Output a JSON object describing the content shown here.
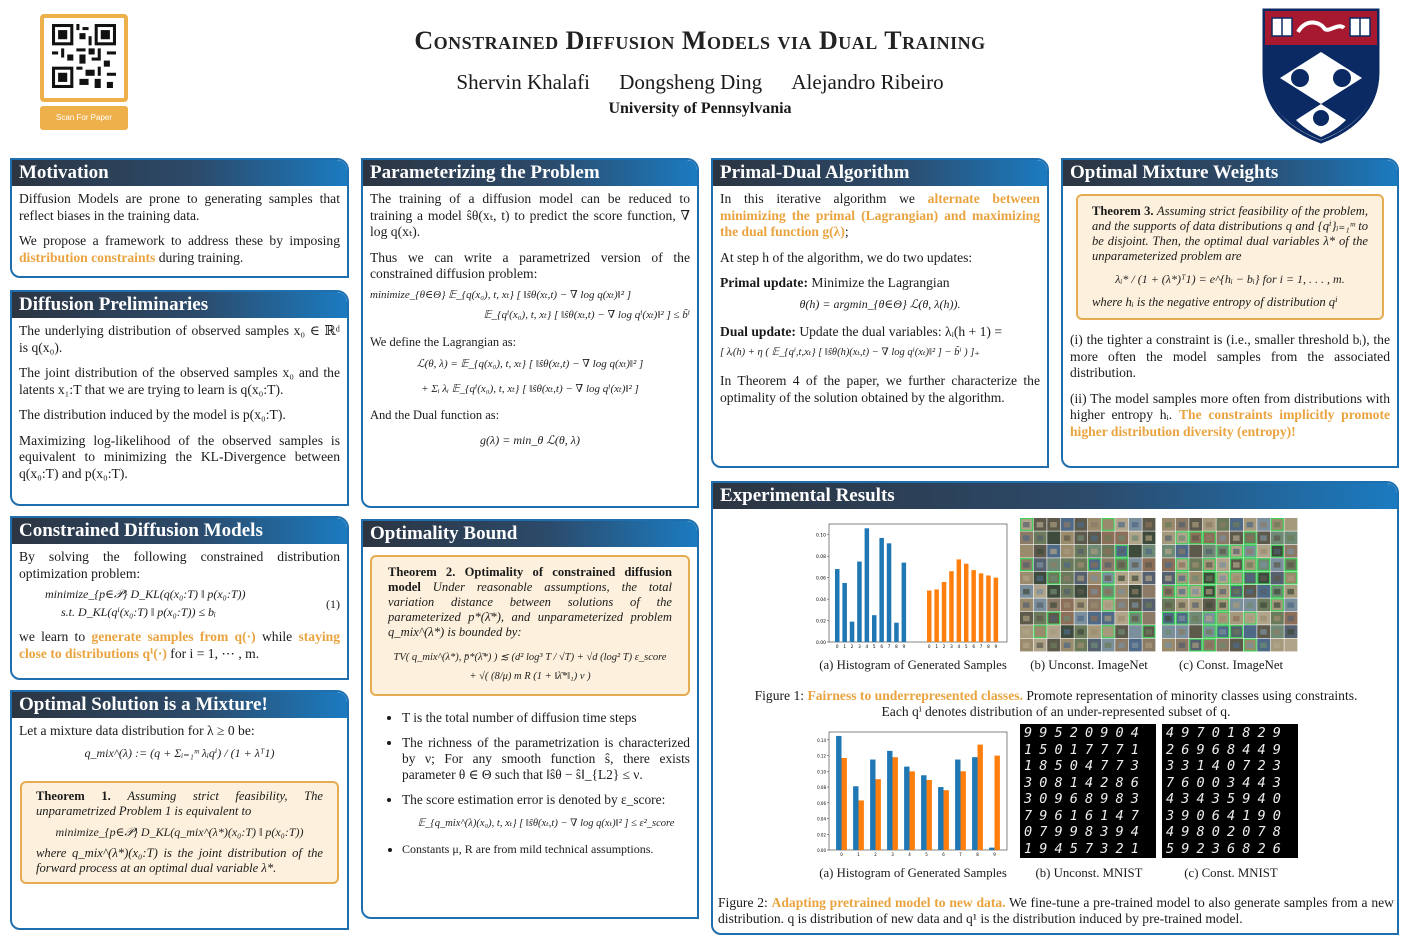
{
  "header": {
    "title": "Constrained Diffusion Models via Dual Training",
    "authors": [
      "Shervin Khalafi",
      "Dongsheng Ding",
      "Alejandro Ribeiro"
    ],
    "affiliation": "University of Pennsylvania",
    "scan_label": "Scan For Paper"
  },
  "motivation": {
    "title": "Motivation",
    "p1": "Diffusion Models are prone to generating samples that reflect biases in the training data.",
    "p2_a": "We propose a framework to address these by imposing ",
    "p2_hl": "distribution constraints",
    "p2_b": " during training."
  },
  "preliminaries": {
    "title": "Diffusion Preliminaries",
    "p1": "The underlying distribution of observed samples x₀ ∈ ℝᵈ is q(x₀).",
    "p2": "The joint distribution of the observed samples x₀ and the latents x₁:T that we are trying to learn is q(x₀:T).",
    "p3": "The distribution induced by the model is p(x₀:T).",
    "p4": "Maximizing log-likelihood of the observed samples is equivalent to minimizing the KL-Divergence between q(x₀:T) and p(x₀:T)."
  },
  "constrained": {
    "title": "Constrained Diffusion Models",
    "p1": "By solving the following constrained distribution optimization problem:",
    "eq1": "minimize_{p∈𝒫}  D_KL(q(x₀:T) ‖ p(x₀:T))",
    "eq2": "s.t.  D_KL(qⁱ(x₀:T) ‖ p(x₀:T)) ≤ bᵢ",
    "eq_num": "(1)",
    "p2_a": "we learn to ",
    "p2_hl1": "generate samples from q(·)",
    "p2_b": " while ",
    "p2_hl2": "staying close to distributions qⁱ(·)",
    "p2_c": " for i = 1, ⋯ , m."
  },
  "mixture": {
    "title": "Optimal Solution is a Mixture!",
    "p1": "Let a mixture data distribution for λ ≥ 0 be:",
    "eq": "q_mix^(λ) := (q + Σᵢ₌₁ᵐ λᵢqⁱ) / (1 + λᵀ1)",
    "thm_label": "Theorem 1.",
    "thm_text": "Assuming strict feasibility, The unparametrized Problem 1 is equivalent to",
    "thm_eq": "minimize_{p∈𝒫}  D_KL(q_mix^(λ*)(x₀:T) ‖ p(x₀:T))",
    "thm_text2": "where q_mix^(λ*)(x₀:T) is the joint distribution of the forward process at an optimal dual variable λ*."
  },
  "param": {
    "title": "Parameterizing the Problem",
    "p1": "The training of a diffusion model can be reduced to training a model ŝθ(xₜ, t) to predict the score function, ∇ log q(xₜ).",
    "p2": "Thus we can write a parametrized version of the constrained diffusion problem:",
    "eq1": "minimize_{θ∈Θ}  𝔼_{q(x₀), t, xₜ} [ ‖ŝθ(xₜ,t) − ∇ log q(xₜ)‖² ]",
    "eq2": "𝔼_{qⁱ(x₀), t, xₜ} [ ‖ŝθ(xₜ,t) − ∇ log qⁱ(xₜ)‖² ] ≤ b̃ⁱ",
    "p3": "We define the Lagrangian as:",
    "eq3": "ℒ(θ, λ) = 𝔼_{q(x₀), t, xₜ} [ ‖ŝθ(xₜ,t) − ∇ log q(xₜ)‖² ]",
    "eq4": "+ Σᵢ λᵢ 𝔼_{qⁱ(x₀), t, xₜ} [ ‖ŝθ(xₜ,t) − ∇ log qⁱ(xₜ)‖² ]",
    "p4": "And the Dual function as:",
    "eq5": "g(λ) = min_θ ℒ(θ, λ)"
  },
  "bound": {
    "title": "Optimality Bound",
    "thm_label": "Theorem 2. Optimality of constrained diffusion model",
    "thm_text": "Under reasonable assumptions, the total variation distance between solutions of the parameterized p*(λ̄*), and unparameterized problem q_mix^(λ*) is bounded by:",
    "thm_eq1": "TV( q_mix^(λ*), p̄*(λ̄*) )  ≲  (d² log³ T / √T) + √d (log² T) ε_score",
    "thm_eq2": "+  √( (8/μ) m R (1 + ‖λ̄*‖₁) ν )",
    "bullets": [
      "T is the total number of diffusion time steps",
      "The richness of the parametrization is characterized by ν; For any smooth function ŝ, there exists parameter θ ∈ Θ such that ‖ŝθ − ŝ‖_{L2} ≤ ν.",
      "The score estimation error is denoted by ε_score:",
      "Constants μ, R are from mild technical assumptions."
    ],
    "eq_score": "𝔼_{q_mix^(λ)(x₀), t, xₜ} [ ‖ŝθ(xₜ,t) − ∇ log q(xₜ)‖² ] ≤ ε²_score"
  },
  "primal": {
    "title": "Primal-Dual Algorithm",
    "p1_a": "In this iterative algorithm we ",
    "p1_hl": "alternate between minimizing the primal (Lagrangian) and maximizing the dual function g(λ)",
    "p1_b": ";",
    "p2": "At step h of the algorithm, we do two updates:",
    "primal_label": "Primal update:",
    "primal_text": " Minimize the Lagrangian",
    "primal_eq": "θ(h) = argmin_{θ∈Θ} ℒ(θ, λ(h)).",
    "dual_label": "Dual update:",
    "dual_text": " Update the dual variables: λᵢ(h + 1) =",
    "dual_eq": "[ λᵢ(h) + η ( 𝔼_{qⁱ,t,xₜ} [ ‖ŝθ(h)(xₜ,t) − ∇ log qⁱ(xₜ)‖² ] − b̃ⁱ ) ]₊",
    "p3": "In Theorem 4 of the paper, we further characterize the optimality of the solution obtained by the algorithm."
  },
  "weights": {
    "title": "Optimal Mixture Weights",
    "thm_label": "Theorem 3.",
    "thm_text": "Assuming strict feasibility of the problem, and the supports of data distributions q and {qⁱ}ᵢ₌₁ᵐ to be disjoint. Then, the optimal dual variables λ* of the unparameterized problem are",
    "thm_eq": "λᵢ* / (1 + (λ*)ᵀ1)  =  e^{hᵢ − bᵢ}   for i = 1, . . . , m.",
    "thm_text2": "where hᵢ is the negative entropy of distribution qⁱ",
    "p1": "(i) the tighter a constraint is (i.e., smaller threshold bᵢ), the more often the model samples from the associated distribution.",
    "p2_a": "(ii) The model samples more often from distributions with higher entropy hᵢ. ",
    "p2_hl": "The constraints implicitly promote higher distribution diversity (entropy)!"
  },
  "results": {
    "title": "Experimental Results",
    "sub_a": "(a) Histogram of Generated Samples",
    "sub_b1": "(b) Unconst. ImageNet",
    "sub_c1": "(c) Const. ImageNet",
    "fig1_label": "Figure 1: ",
    "fig1_hl": "Fairness to underrepresented classes.",
    "fig1_text": " Promote representation of minority classes using constraints.",
    "fig1_text2": "Each qⁱ denotes distribution of an under-represented subset of q.",
    "sub_a2": "(a) Histogram of Generated Samples",
    "sub_b2": "(b) Unconst. MNIST",
    "sub_c2": "(c) Const. MNIST",
    "fig2_label": "Figure 2: ",
    "fig2_hl": "Adapting pretrained model to new data.",
    "fig2_text": " We fine-tune a pre-trained model to also generate samples from a new distribution. q is distribution of new data and q¹ is the distribution induced by pre-trained model.",
    "mnist_unconst_rows": [
      "9 9 5 2 0 9 0 4",
      "1 5 0 1 7 7 7 1",
      "1 8 5 0 4 7 7 3",
      "3 0 8 1 4 2 8 6",
      "3 0 9 6 8 9 8 3",
      "7 9 6 1 6 1 4 7",
      "0 7 9 9 8 3 9 4",
      "1 9 4 5 7 3 2 1"
    ],
    "mnist_const_rows": [
      "4 9 7 0 1 8 2 9",
      "2 6 9 6 8 4 4 9",
      "3 3 1 4 0 7 2 3",
      "7 6 0 0 3 4 4 3",
      "4 3 4 3 5 9 4 0",
      "3 9 0 6 4 1 9 0",
      "4 9 8 0 2 0 7 8",
      "5 9 2 3 6 8 2 6"
    ]
  },
  "chart_data": [
    {
      "type": "bar",
      "title": "Histogram of Generated Samples (ImageNet)",
      "categories": [
        "0",
        "1",
        "2",
        "3",
        "4",
        "5",
        "6",
        "7",
        "8",
        "9"
      ],
      "ylim": [
        0,
        0.11
      ],
      "yticks": [
        "0.00",
        "0.02",
        "0.04",
        "0.06",
        "0.08",
        "0.10"
      ],
      "series": [
        {
          "name": "Unconstrained",
          "color": "#1f77b4",
          "values": [
            0.068,
            0.055,
            0.019,
            0.075,
            0.106,
            0.025,
            0.097,
            0.092,
            0.018,
            0.074
          ]
        },
        {
          "name": "Constrained",
          "color": "#ff7f0e",
          "values": [
            0.048,
            0.049,
            0.056,
            0.066,
            0.077,
            0.073,
            0.067,
            0.064,
            0.062,
            0.06
          ]
        }
      ]
    },
    {
      "type": "bar",
      "title": "Histogram of Generated Samples (MNIST)",
      "categories": [
        "0",
        "1",
        "2",
        "3",
        "4",
        "5",
        "6",
        "7",
        "8",
        "9"
      ],
      "ylim": [
        0,
        0.15
      ],
      "yticks": [
        "0.00",
        "0.02",
        "0.04",
        "0.06",
        "0.08",
        "0.10",
        "0.12",
        "0.14"
      ],
      "series": [
        {
          "name": "Unconstrained",
          "color": "#1f77b4",
          "values": [
            0.145,
            0.081,
            0.115,
            0.126,
            0.106,
            0.095,
            0.08,
            0.115,
            0.118,
            0.003
          ]
        },
        {
          "name": "Constrained",
          "color": "#ff7f0e",
          "values": [
            0.117,
            0.063,
            0.09,
            0.118,
            0.1,
            0.089,
            0.076,
            0.1,
            0.134,
            0.12
          ]
        }
      ]
    }
  ]
}
